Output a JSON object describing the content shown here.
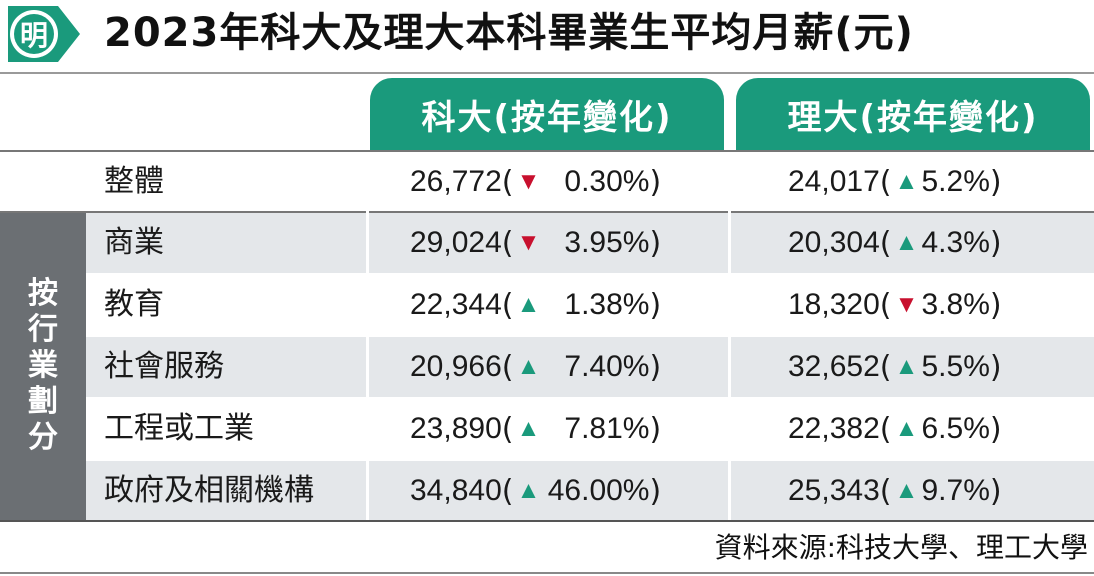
{
  "header": {
    "logo_char": "明",
    "title": "2023年科大及理大本科畢業生平均月薪(元)"
  },
  "columns": {
    "hkust": "科大(按年變化)",
    "polyu": "理大(按年變化)"
  },
  "side_label": [
    "按",
    "行",
    "業",
    "劃",
    "分"
  ],
  "open_paren": "(",
  "close_paren": ")",
  "rows": [
    {
      "label": "整體",
      "hkust_salary": "26,772",
      "hkust_dir": "down",
      "hkust_arrow": "▼",
      "hkust_change": "0.30%",
      "polyu_salary": "24,017",
      "polyu_dir": "up",
      "polyu_arrow": "▲",
      "polyu_change": "5.2%"
    },
    {
      "label": "商業",
      "hkust_salary": "29,024",
      "hkust_dir": "down",
      "hkust_arrow": "▼",
      "hkust_change": "3.95%",
      "polyu_salary": "20,304",
      "polyu_dir": "up",
      "polyu_arrow": "▲",
      "polyu_change": "4.3%"
    },
    {
      "label": "教育",
      "hkust_salary": "22,344",
      "hkust_dir": "up",
      "hkust_arrow": "▲",
      "hkust_change": "1.38%",
      "polyu_salary": "18,320",
      "polyu_dir": "down",
      "polyu_arrow": "▼",
      "polyu_change": "3.8%"
    },
    {
      "label": "社會服務",
      "hkust_salary": "20,966",
      "hkust_dir": "up",
      "hkust_arrow": "▲",
      "hkust_change": "7.40%",
      "polyu_salary": "32,652",
      "polyu_dir": "up",
      "polyu_arrow": "▲",
      "polyu_change": "5.5%"
    },
    {
      "label": "工程或工業",
      "hkust_salary": "23,890",
      "hkust_dir": "up",
      "hkust_arrow": "▲",
      "hkust_change": "7.81%",
      "polyu_salary": "22,382",
      "polyu_dir": "up",
      "polyu_arrow": "▲",
      "polyu_change": "6.5%"
    },
    {
      "label": "政府及相關機構",
      "hkust_salary": "34,840",
      "hkust_dir": "up",
      "hkust_arrow": "▲",
      "hkust_change": "46.00%",
      "polyu_salary": "25,343",
      "polyu_dir": "up",
      "polyu_arrow": "▲",
      "polyu_change": "9.7%"
    }
  ],
  "source": "資料來源:科技大學、理工大學",
  "colors": {
    "accent_green": "#1a9a7c",
    "down_red": "#c8102e",
    "side_gray": "#6b6f73",
    "row_shade": "#e4e7ea"
  }
}
